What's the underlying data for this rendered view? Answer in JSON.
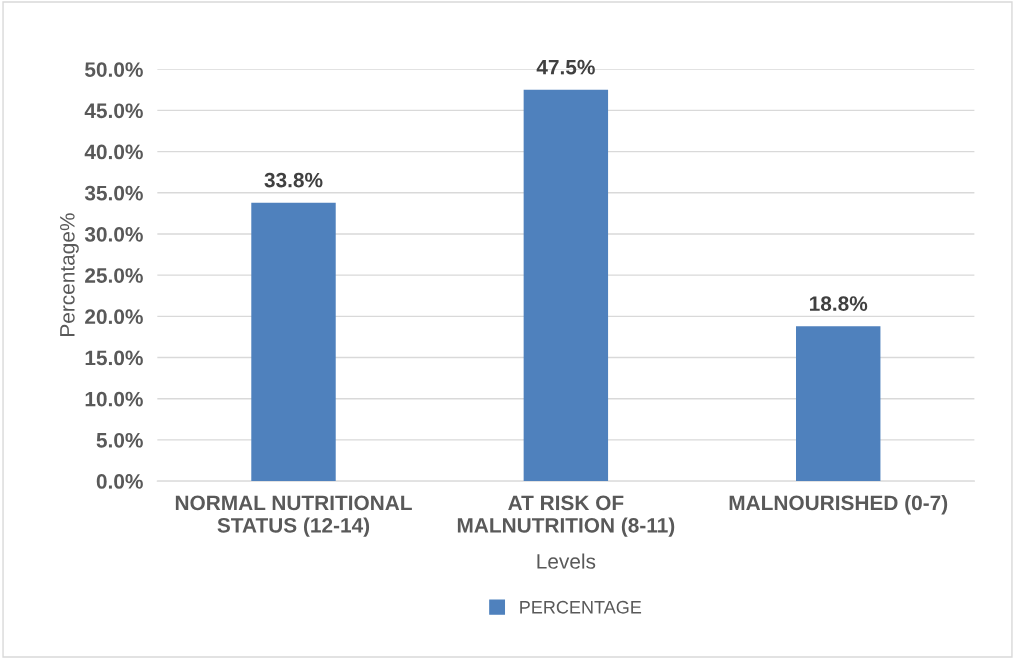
{
  "chart_data": {
    "type": "bar",
    "xlabel": "Levels",
    "ylabel": "Percentage%",
    "categories": [
      "NORMAL NUTRITIONAL\nSTATUS (12-14)",
      "AT RISK OF\nMALNUTRITION (8-11)",
      "MALNOURISHED (0-7)"
    ],
    "series": [
      {
        "name": "PERCENTAGE",
        "color": "#4f81bd",
        "values": [
          33.8,
          47.5,
          18.8
        ],
        "value_labels": [
          "33.8%",
          "47.5%",
          "18.8%"
        ]
      }
    ],
    "ylim": [
      0,
      50
    ],
    "yticks": [
      {
        "value": 0,
        "label": "0.0%"
      },
      {
        "value": 5,
        "label": "5.0%"
      },
      {
        "value": 10,
        "label": "10.0%"
      },
      {
        "value": 15,
        "label": "15.0%"
      },
      {
        "value": 20,
        "label": "20.0%"
      },
      {
        "value": 25,
        "label": "25.0%"
      },
      {
        "value": 30,
        "label": "30.0%"
      },
      {
        "value": 35,
        "label": "35.0%"
      },
      {
        "value": 40,
        "label": "40.0%"
      },
      {
        "value": 45,
        "label": "45.0%"
      },
      {
        "value": 50,
        "label": "50.0%"
      }
    ],
    "grid": "y",
    "legend": "bottom"
  }
}
